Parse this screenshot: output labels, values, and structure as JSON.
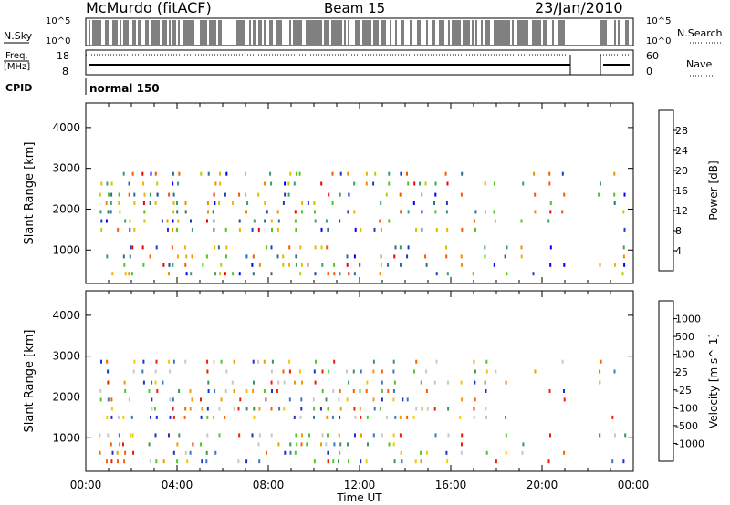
{
  "header": {
    "station": "McMurdo (fitACF)",
    "beam": "Beam 15",
    "date": "23/Jan/2010"
  },
  "left_labels": {
    "nsky": "N.Sky",
    "freq_line1": "Freq.",
    "freq_line2": "[MHz]",
    "cpid": "CPID"
  },
  "right_labels": {
    "nsearch": "N.Search",
    "nave": "Nave"
  },
  "cpid_value": "normal 150",
  "strip_ticks": {
    "noise_left": [
      "10^5",
      "10^0"
    ],
    "noise_right": [
      "10^5",
      "10^0"
    ],
    "freq_left": [
      "18",
      "8"
    ],
    "freq_right": [
      "60",
      "0"
    ]
  },
  "time_axis": {
    "label": "Time UT",
    "ticks": [
      "00:00",
      "04:00",
      "08:00",
      "12:00",
      "16:00",
      "20:00",
      "00:00"
    ]
  },
  "chart_data": [
    {
      "type": "heatmap",
      "panel": "power",
      "ylabel": "Slant Range [km]",
      "ylim": [
        180,
        4600
      ],
      "yticks": [
        "1000",
        "2000",
        "3000",
        "4000"
      ],
      "xlim": [
        0,
        24
      ],
      "colorbar": {
        "label": "Power [dB]",
        "range": [
          0,
          32
        ],
        "tick_labels": [
          "4",
          "8",
          "12",
          "16",
          "20",
          "24",
          "28"
        ],
        "colors": [
          "#0000ff",
          "#1e3fb4",
          "#2f6f8a",
          "#3e9b6e",
          "#52c41a",
          "#c8c800",
          "#f0b400",
          "#f58c00",
          "#f55a00",
          "#f00000"
        ]
      },
      "range_gates_km": [
        420,
        630,
        840,
        1065,
        1500,
        1710,
        1935,
        2145,
        2355,
        2625,
        2865
      ],
      "columns_hours": [
        0.6,
        0.9,
        1.1,
        1.4,
        1.65,
        1.9,
        2.05,
        2.5,
        2.8,
        3.05,
        3.35,
        3.6,
        3.8,
        4.0,
        4.35,
        4.6,
        5.05,
        5.3,
        5.6,
        5.85,
        6.1,
        6.45,
        6.7,
        7.0,
        7.3,
        7.55,
        7.85,
        8.1,
        8.4,
        8.65,
        8.9,
        9.15,
        9.4,
        9.7,
        10.0,
        10.3,
        10.55,
        10.8,
        11.1,
        11.45,
        11.75,
        12.0,
        12.3,
        12.6,
        12.9,
        13.2,
        13.5,
        13.8,
        14.1,
        14.4,
        14.65,
        14.9,
        15.3,
        15.8,
        16.4,
        17.0,
        17.5,
        17.9,
        18.4,
        19.1,
        19.6,
        20.3,
        20.9,
        22.5,
        23.1,
        23.55
      ]
    },
    {
      "type": "heatmap",
      "panel": "velocity",
      "ylabel": "Slant Range [km]",
      "ylim": [
        180,
        4600
      ],
      "yticks": [
        "1000",
        "2000",
        "3000",
        "4000"
      ],
      "xlim": [
        0,
        24
      ],
      "colorbar": {
        "label": "Velocity [m s^-1]",
        "tick_labels": [
          "1000",
          "500",
          "100",
          "25",
          "-25",
          "-100",
          "-500",
          "-1000"
        ],
        "colors": [
          "#1e32c8",
          "#3c78be",
          "#3c9650",
          "#50c828",
          "#c8c8c8",
          "#f5c800",
          "#f59b00",
          "#f56400",
          "#f01e00"
        ]
      },
      "range_gates_km": [
        420,
        630,
        840,
        1065,
        1500,
        1710,
        1935,
        2145,
        2355,
        2625,
        2865
      ],
      "columns_hours": [
        0.6,
        0.9,
        1.1,
        1.4,
        1.65,
        1.9,
        2.05,
        2.5,
        2.8,
        3.05,
        3.35,
        3.6,
        3.8,
        4.0,
        4.35,
        4.6,
        5.05,
        5.3,
        5.6,
        5.85,
        6.1,
        6.45,
        6.7,
        7.0,
        7.3,
        7.55,
        7.85,
        8.1,
        8.4,
        8.65,
        8.9,
        9.15,
        9.4,
        9.7,
        10.0,
        10.3,
        10.55,
        10.8,
        11.1,
        11.45,
        11.75,
        12.0,
        12.3,
        12.6,
        12.9,
        13.2,
        13.5,
        13.8,
        14.1,
        14.4,
        14.65,
        14.9,
        15.3,
        15.8,
        16.4,
        17.0,
        17.5,
        17.9,
        18.4,
        19.1,
        19.6,
        20.3,
        20.9,
        22.5,
        23.1,
        23.55
      ]
    }
  ]
}
